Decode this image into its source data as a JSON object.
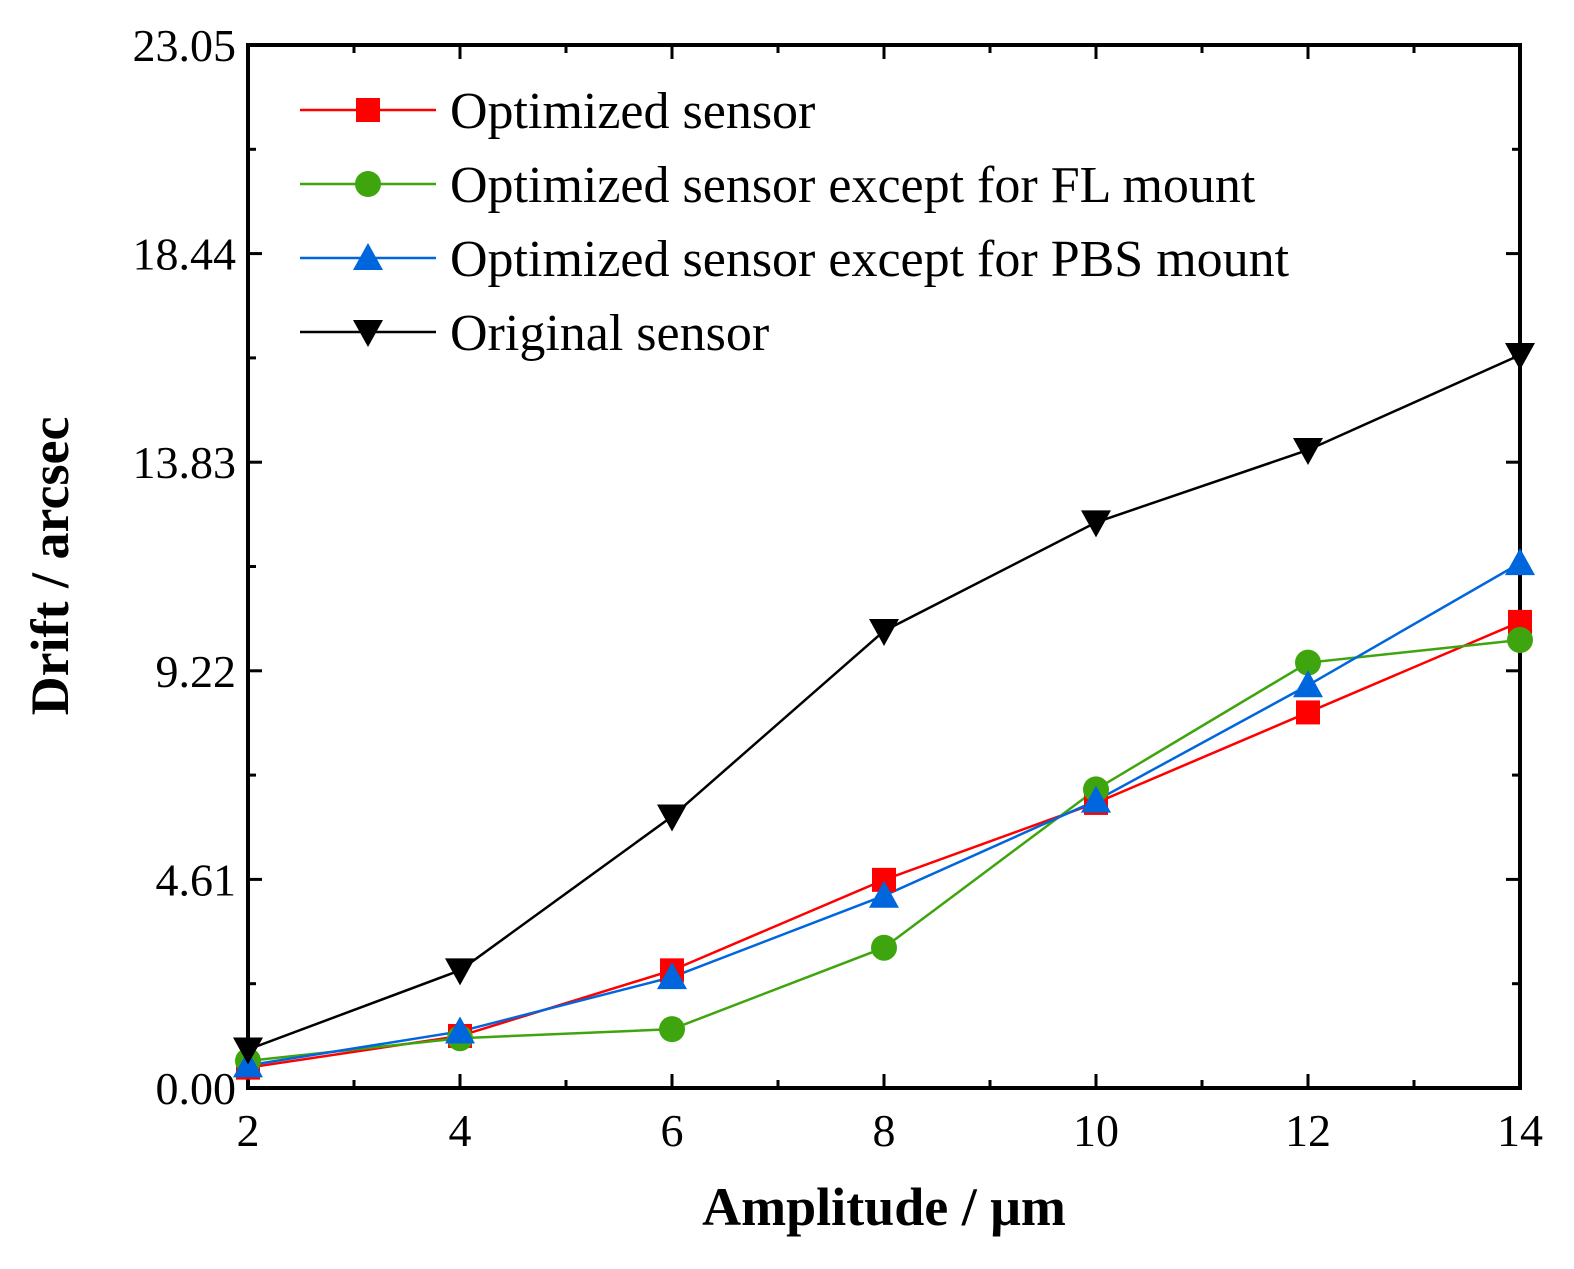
{
  "chart_data": {
    "type": "line",
    "title": "",
    "xlabel": "Amplitude / μm",
    "ylabel": "Drift / arcsec",
    "xlim": [
      2,
      14
    ],
    "ylim": [
      0,
      23.05
    ],
    "xticks": [
      2,
      4,
      6,
      8,
      10,
      12,
      14
    ],
    "xtick_labels": [
      "2",
      "4",
      "6",
      "8",
      "10",
      "12",
      "14"
    ],
    "yticks": [
      0,
      4.61,
      9.22,
      13.83,
      18.44,
      23.05
    ],
    "ytick_labels": [
      "0.00",
      "4.61",
      "9.22",
      "13.83",
      "18.44",
      "23.05"
    ],
    "legend_position": "top-left",
    "series": [
      {
        "name": "Optimized sensor",
        "color": "#ff0000",
        "marker": "square",
        "x": [
          2,
          4,
          6,
          8,
          10,
          12,
          14
        ],
        "values": [
          0.45,
          1.15,
          2.6,
          4.6,
          6.3,
          8.3,
          10.3
        ]
      },
      {
        "name": "Optimized sensor except for FL mount",
        "color": "#3fa50f",
        "marker": "circle",
        "x": [
          2,
          4,
          6,
          8,
          10,
          12,
          14
        ],
        "values": [
          0.6,
          1.1,
          1.3,
          3.1,
          6.6,
          9.4,
          9.9
        ]
      },
      {
        "name": "Optimized sensor except for PBS mount",
        "color": "#0066dd",
        "marker": "triangle-up",
        "x": [
          2,
          4,
          6,
          8,
          10,
          12,
          14
        ],
        "values": [
          0.5,
          1.25,
          2.45,
          4.25,
          6.35,
          8.9,
          11.6
        ]
      },
      {
        "name": "Original sensor",
        "color": "#000000",
        "marker": "triangle-down",
        "x": [
          2,
          4,
          6,
          8,
          10,
          12,
          14
        ],
        "values": [
          0.85,
          2.6,
          6.0,
          10.1,
          12.5,
          14.1,
          16.2
        ]
      }
    ]
  }
}
